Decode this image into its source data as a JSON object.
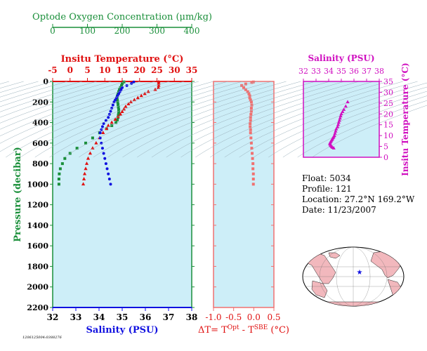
{
  "colors": {
    "oxygen": "#1a8f3a",
    "temperature": "#e01010",
    "salinity": "#1010e0",
    "delta": "#f07070",
    "ts": "#d010c0",
    "plot_bg": "#cdeef8",
    "pressure_axis": "#1a8f3a"
  },
  "chart_data": [
    {
      "type": "scatter",
      "name": "profile",
      "y_axis": {
        "label": "Pressure (decibar)",
        "range": [
          0,
          2200
        ],
        "ticks": [
          0,
          200,
          400,
          600,
          800,
          1000,
          1200,
          1400,
          1600,
          1800,
          2000,
          2200
        ],
        "inverted": true
      },
      "x_axes": [
        {
          "key": "oxygen",
          "label": "Optode Oxygen Concentration (μm/kg)",
          "position": "top",
          "range": [
            0,
            400
          ],
          "ticks": [
            0,
            100,
            200,
            300,
            400
          ]
        },
        {
          "key": "temperature",
          "label": "Insitu Temperature (°C)",
          "position": "top",
          "range": [
            -5,
            35
          ],
          "ticks": [
            -5,
            0,
            5,
            10,
            15,
            20,
            25,
            30,
            35
          ]
        },
        {
          "key": "salinity",
          "label": "Salinity (PSU)",
          "position": "bottom",
          "range": [
            32,
            38
          ],
          "ticks": [
            32,
            33,
            34,
            35,
            36,
            37,
            38
          ]
        }
      ],
      "series": [
        {
          "key": "oxygen",
          "marker": "square",
          "points": [
            [
              205,
              5
            ],
            [
              200,
              20
            ],
            [
              198,
              40
            ],
            [
              195,
              60
            ],
            [
              192,
              80
            ],
            [
              190,
              100
            ],
            [
              188,
              120
            ],
            [
              186,
              140
            ],
            [
              185,
              160
            ],
            [
              186,
              180
            ],
            [
              187,
              200
            ],
            [
              188,
              225
            ],
            [
              189,
              250
            ],
            [
              190,
              275
            ],
            [
              190,
              300
            ],
            [
              189,
              325
            ],
            [
              188,
              350
            ],
            [
              186,
              375
            ],
            [
              182,
              400
            ],
            [
              170,
              430
            ],
            [
              155,
              460
            ],
            [
              135,
              500
            ],
            [
              115,
              550
            ],
            [
              95,
              600
            ],
            [
              70,
              650
            ],
            [
              50,
              700
            ],
            [
              35,
              750
            ],
            [
              28,
              800
            ],
            [
              22,
              850
            ],
            [
              19,
              900
            ],
            [
              18,
              950
            ],
            [
              18,
              1000
            ]
          ]
        },
        {
          "key": "temperature",
          "marker": "triangle",
          "points": [
            [
              25.5,
              5
            ],
            [
              25.5,
              20
            ],
            [
              25.5,
              40
            ],
            [
              25.4,
              60
            ],
            [
              24.5,
              80
            ],
            [
              22.5,
              100
            ],
            [
              21.5,
              120
            ],
            [
              20.5,
              140
            ],
            [
              19.5,
              160
            ],
            [
              18.5,
              180
            ],
            [
              17.5,
              200
            ],
            [
              16.8,
              220
            ],
            [
              16,
              245
            ],
            [
              15.5,
              270
            ],
            [
              15,
              295
            ],
            [
              14.5,
              320
            ],
            [
              13.8,
              345
            ],
            [
              13,
              370
            ],
            [
              12,
              400
            ],
            [
              11,
              430
            ],
            [
              10.5,
              460
            ],
            [
              9.5,
              500
            ],
            [
              8.5,
              550
            ],
            [
              7.5,
              600
            ],
            [
              6.5,
              650
            ],
            [
              5.8,
              700
            ],
            [
              5.2,
              750
            ],
            [
              4.8,
              800
            ],
            [
              4.5,
              850
            ],
            [
              4.2,
              900
            ],
            [
              4,
              950
            ],
            [
              3.8,
              1000
            ]
          ]
        },
        {
          "key": "salinity",
          "marker": "circle",
          "points": [
            [
              35.5,
              5
            ],
            [
              35.4,
              20
            ],
            [
              35.2,
              40
            ],
            [
              35,
              60
            ],
            [
              34.95,
              80
            ],
            [
              34.9,
              100
            ],
            [
              34.85,
              120
            ],
            [
              34.8,
              140
            ],
            [
              34.75,
              160
            ],
            [
              34.7,
              180
            ],
            [
              34.65,
              200
            ],
            [
              34.6,
              230
            ],
            [
              34.55,
              260
            ],
            [
              34.5,
              290
            ],
            [
              34.45,
              320
            ],
            [
              34.4,
              350
            ],
            [
              34.3,
              380
            ],
            [
              34.2,
              410
            ],
            [
              34.15,
              440
            ],
            [
              34.1,
              470
            ],
            [
              34.05,
              500
            ],
            [
              34.05,
              550
            ],
            [
              34.1,
              600
            ],
            [
              34.15,
              650
            ],
            [
              34.2,
              700
            ],
            [
              34.25,
              750
            ],
            [
              34.3,
              800
            ],
            [
              34.35,
              850
            ],
            [
              34.4,
              900
            ],
            [
              34.45,
              950
            ],
            [
              34.5,
              1000
            ]
          ]
        }
      ]
    },
    {
      "type": "scatter",
      "name": "delta",
      "x_axis": {
        "label": "ΔT= T",
        "label_sup1": "Opt",
        "label_mid": " - T",
        "label_sup2": "SBE",
        "label_end": " (°C)",
        "range": [
          -1.0,
          0.5
        ],
        "ticks": [
          "-1.0",
          "-0.5",
          "0.0",
          "0.5"
        ]
      },
      "y_range": [
        0,
        2200
      ],
      "points": [
        [
          -0.01,
          5
        ],
        [
          -0.05,
          10
        ],
        [
          -0.2,
          25
        ],
        [
          -0.3,
          40
        ],
        [
          -0.25,
          60
        ],
        [
          -0.2,
          80
        ],
        [
          -0.15,
          100
        ],
        [
          -0.12,
          120
        ],
        [
          -0.1,
          140
        ],
        [
          -0.1,
          160
        ],
        [
          -0.08,
          180
        ],
        [
          -0.06,
          200
        ],
        [
          -0.05,
          230
        ],
        [
          -0.06,
          260
        ],
        [
          -0.06,
          290
        ],
        [
          -0.07,
          320
        ],
        [
          -0.08,
          350
        ],
        [
          -0.08,
          380
        ],
        [
          -0.09,
          410
        ],
        [
          -0.09,
          440
        ],
        [
          -0.08,
          470
        ],
        [
          -0.08,
          500
        ],
        [
          -0.07,
          550
        ],
        [
          -0.06,
          600
        ],
        [
          -0.05,
          650
        ],
        [
          -0.04,
          700
        ],
        [
          -0.03,
          750
        ],
        [
          -0.02,
          800
        ],
        [
          -0.02,
          850
        ],
        [
          -0.01,
          900
        ],
        [
          -0.01,
          950
        ],
        [
          -0.01,
          1000
        ]
      ]
    },
    {
      "type": "scatter",
      "name": "ts_diagram",
      "x_axis": {
        "label": "Salinity (PSU)",
        "range": [
          32,
          38
        ],
        "ticks": [
          32,
          33,
          34,
          35,
          36,
          37,
          38
        ]
      },
      "y_axis": {
        "label": "Insitu Temperature (°C)",
        "range": [
          0,
          35
        ],
        "ticks": [
          0,
          5,
          10,
          15,
          20,
          25,
          30,
          35
        ]
      },
      "points": [
        [
          35.5,
          25.5
        ],
        [
          35.35,
          23.5
        ],
        [
          35.2,
          22
        ],
        [
          35.1,
          21
        ],
        [
          35.0,
          20
        ],
        [
          34.95,
          19
        ],
        [
          34.9,
          18
        ],
        [
          34.85,
          17
        ],
        [
          34.8,
          16
        ],
        [
          34.75,
          15
        ],
        [
          34.7,
          14
        ],
        [
          34.6,
          13
        ],
        [
          34.55,
          12
        ],
        [
          34.5,
          11
        ],
        [
          34.45,
          10
        ],
        [
          34.4,
          9.5
        ],
        [
          34.35,
          9
        ],
        [
          34.3,
          8.5
        ],
        [
          34.25,
          8
        ],
        [
          34.2,
          7.5
        ],
        [
          34.15,
          7
        ],
        [
          34.1,
          6.5
        ],
        [
          34.1,
          6
        ],
        [
          34.15,
          5.5
        ],
        [
          34.2,
          5.2
        ],
        [
          34.25,
          4.8
        ],
        [
          34.3,
          4.5
        ],
        [
          34.4,
          4.2
        ]
      ]
    }
  ],
  "info": {
    "float": "Float:  5034",
    "profile": "Profile:  121",
    "location": "Location:  27.2°N  169.2°W",
    "date": "Date:  11/23/2007"
  },
  "map": {
    "marker": "★"
  },
  "footer_id": "1206125004:0388276"
}
